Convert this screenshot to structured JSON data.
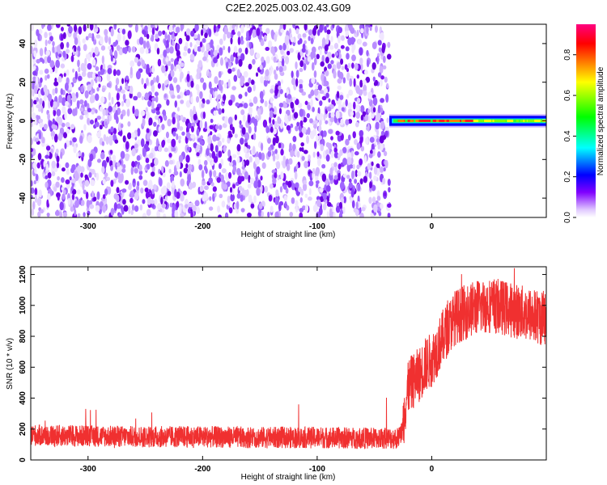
{
  "title": "C2E2.2025.003.02.43.G09",
  "chart_data": [
    {
      "type": "heatmap",
      "title": "C2E2.2025.003.02.43.G09",
      "xlabel": "Height of straight line (km)",
      "ylabel": "Frequency (Hz)",
      "xlim": [
        -350,
        100
      ],
      "ylim": [
        -50,
        50
      ],
      "xticks": [
        "-300",
        "-200",
        "-100",
        "0"
      ],
      "yticks": [
        "-40",
        "-20",
        "0",
        "20",
        "40"
      ],
      "noise_region_x": [
        -350,
        -37
      ],
      "signal_band": {
        "x": [
          -37,
          100
        ],
        "center_frequency": 0,
        "half_width": 3
      },
      "colorbar": {
        "label": "Normalized spectral amplitude",
        "range": [
          0.0,
          0.95
        ],
        "ticks": [
          "0.0",
          "0.2",
          "0.4",
          "0.6",
          "0.8"
        ],
        "colors": [
          "#ffffff",
          "#e0c8ff",
          "#8000ff",
          "#0000ff",
          "#00ffff",
          "#00ff00",
          "#ffff00",
          "#ff8000",
          "#ff0000",
          "#ff0080"
        ]
      }
    },
    {
      "type": "line",
      "xlabel": "Height of straight line (km)",
      "ylabel": "SNR (10 * v/v)",
      "xlim": [
        -350,
        100
      ],
      "ylim": [
        0,
        1250
      ],
      "xticks": [
        "-300",
        "-200",
        "-100",
        "0"
      ],
      "yticks": [
        "0",
        "200",
        "400",
        "600",
        "800",
        "1000",
        "1200"
      ],
      "color": "#f03030",
      "series": [
        {
          "x": [
            -350,
            -300,
            -250,
            -200,
            -150,
            -100,
            -50,
            -30,
            -26,
            -24,
            -22,
            -20,
            -15,
            -10,
            -5,
            0,
            5,
            10,
            15,
            20,
            30,
            40,
            50,
            60,
            70,
            80,
            90,
            100
          ],
          "values": [
            160,
            155,
            150,
            150,
            145,
            145,
            140,
            140,
            180,
            300,
            400,
            480,
            520,
            560,
            620,
            650,
            720,
            800,
            860,
            920,
            960,
            990,
            1000,
            990,
            970,
            950,
            930,
            910
          ]
        }
      ]
    }
  ]
}
